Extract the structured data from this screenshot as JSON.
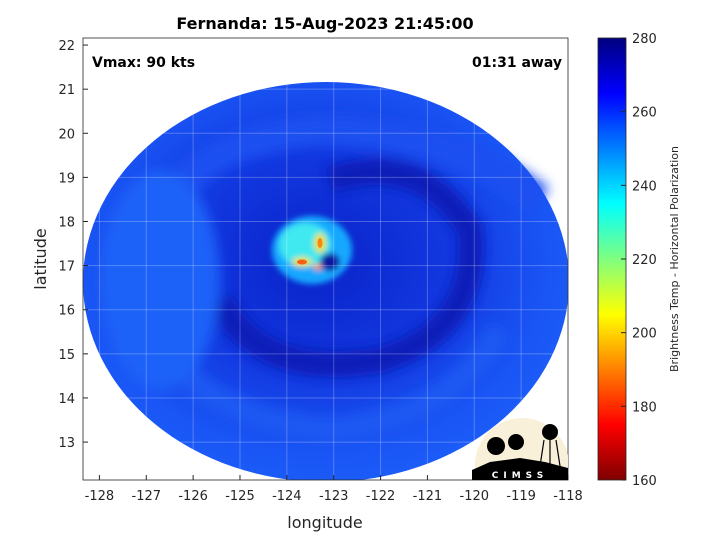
{
  "title": "Fernanda: 15-Aug-2023 21:45:00",
  "vmax_label": "Vmax: 90 kts",
  "away_label": "01:31 away",
  "xlabel": "longitude",
  "ylabel": "latitude",
  "colorbar_label": "Brightness Temp - Horizontal Polarization",
  "logo_text": "CIMSS",
  "x_ticks": [
    -128,
    -127,
    -126,
    -125,
    -124,
    -123,
    -122,
    -121,
    -120,
    -119,
    -118
  ],
  "y_ticks": [
    13,
    14,
    15,
    16,
    17,
    18,
    19,
    20,
    21,
    22
  ],
  "colorbar_ticks": [
    280,
    260,
    240,
    220,
    200,
    180,
    160
  ],
  "colorbar_range": [
    160,
    280
  ],
  "xlim": [
    -128.35,
    -118
  ],
  "ylim": [
    12.14,
    22.16
  ],
  "colors": {
    "jet_low": "#7F0000",
    "jet_high": "#00007F",
    "storm_base": "#1446f0"
  }
}
